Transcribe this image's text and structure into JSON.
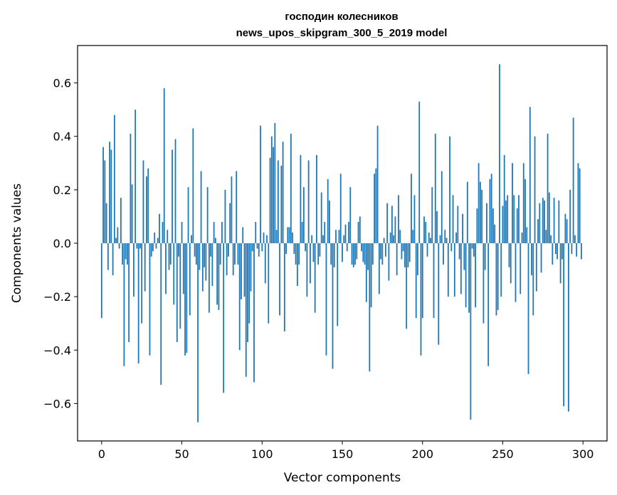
{
  "chart_data": {
    "type": "bar",
    "title_line1": "господин колесников",
    "title_line2": "news_upos_skipgram_300_5_2019 model",
    "xlabel": "Vector components",
    "ylabel": "Components values",
    "xlim": [
      -15,
      315
    ],
    "ylim": [
      -0.74,
      0.74
    ],
    "xticks": [
      0,
      50,
      100,
      150,
      200,
      250,
      300
    ],
    "xtick_labels": [
      "0",
      "50",
      "100",
      "150",
      "200",
      "250",
      "300"
    ],
    "yticks": [
      -0.6,
      -0.4,
      -0.2,
      0.0,
      0.2,
      0.4,
      0.6
    ],
    "ytick_labels": [
      "−0.6",
      "−0.4",
      "−0.2",
      "0.0",
      "0.2",
      "0.4",
      "0.6"
    ],
    "bar_color": "#1f77b4",
    "values": [
      -0.28,
      0.36,
      0.31,
      0.15,
      -0.1,
      0.38,
      0.35,
      -0.12,
      0.48,
      0.02,
      0.06,
      -0.02,
      0.17,
      -0.08,
      -0.46,
      -0.06,
      -0.08,
      -0.37,
      0.41,
      0.22,
      -0.2,
      0.5,
      -0.02,
      -0.45,
      -0.02,
      -0.3,
      0.31,
      -0.18,
      0.25,
      0.28,
      -0.42,
      -0.05,
      -0.03,
      0.04,
      -0.02,
      0.02,
      0.11,
      -0.53,
      0.08,
      0.58,
      -0.19,
      0.05,
      -0.1,
      -0.08,
      0.35,
      -0.23,
      0.39,
      -0.37,
      -0.05,
      -0.32,
      0.08,
      -0.19,
      -0.42,
      -0.41,
      0.21,
      -0.27,
      0.03,
      0.43,
      -0.05,
      -0.08,
      -0.67,
      -0.1,
      0.27,
      -0.18,
      -0.09,
      -0.14,
      0.21,
      -0.26,
      -0.05,
      -0.16,
      0.08,
      0.02,
      -0.23,
      -0.25,
      -0.08,
      0.08,
      -0.56,
      0.2,
      -0.12,
      -0.05,
      0.15,
      0.25,
      -0.12,
      -0.08,
      0.27,
      -0.08,
      -0.4,
      -0.21,
      0.06,
      -0.2,
      -0.5,
      -0.37,
      -0.3,
      -0.18,
      -0.03,
      -0.52,
      0.08,
      -0.02,
      -0.05,
      0.44,
      -0.03,
      0.04,
      -0.15,
      0.03,
      -0.3,
      0.32,
      0.4,
      0.36,
      0.45,
      0.05,
      0.31,
      -0.27,
      0.29,
      0.38,
      -0.33,
      -0.04,
      0.06,
      0.06,
      0.41,
      0.04,
      -0.04,
      -0.08,
      -0.16,
      -0.08,
      0.33,
      0.08,
      0.21,
      -0.03,
      -0.2,
      0.31,
      -0.15,
      0.03,
      -0.07,
      -0.26,
      0.33,
      -0.08,
      -0.05,
      0.19,
      0.03,
      0.08,
      -0.42,
      0.24,
      0.16,
      -0.08,
      -0.47,
      -0.09,
      0.05,
      -0.31,
      0.05,
      0.26,
      -0.07,
      0.03,
      0.07,
      -0.03,
      0.08,
      0.21,
      -0.08,
      -0.09,
      -0.08,
      -0.06,
      0.08,
      0.1,
      -0.03,
      -0.07,
      -0.08,
      -0.22,
      -0.1,
      -0.48,
      -0.24,
      -0.08,
      0.26,
      0.28,
      0.44,
      -0.19,
      -0.06,
      -0.08,
      0.02,
      -0.05,
      0.15,
      -0.14,
      0.04,
      0.14,
      0.03,
      0.1,
      -0.12,
      0.18,
      0.05,
      -0.06,
      -0.03,
      -0.09,
      -0.32,
      -0.09,
      -0.07,
      0.26,
      0.05,
      0.18,
      -0.28,
      -0.12,
      0.53,
      -0.42,
      -0.28,
      0.1,
      0.08,
      -0.05,
      0.04,
      0.02,
      0.21,
      -0.28,
      0.41,
      0.12,
      -0.38,
      0.03,
      0.27,
      -0.08,
      0.05,
      0.02,
      -0.2,
      0.4,
      -0.03,
      0.18,
      -0.2,
      0.04,
      0.14,
      -0.06,
      -0.19,
      0.11,
      -0.1,
      -0.24,
      0.23,
      -0.26,
      -0.66,
      -0.02,
      -0.05,
      -0.24,
      0.13,
      0.3,
      0.23,
      0.2,
      -0.3,
      -0.1,
      0.15,
      -0.46,
      0.24,
      0.26,
      0.13,
      0.07,
      -0.27,
      -0.25,
      0.67,
      -0.2,
      0.14,
      0.33,
      0.16,
      0.18,
      -0.09,
      -0.15,
      0.3,
      0.18,
      -0.22,
      0.13,
      0.18,
      -0.19,
      0.04,
      0.3,
      0.24,
      0.06,
      -0.49,
      0.51,
      -0.12,
      -0.27,
      0.4,
      -0.18,
      0.09,
      0.15,
      -0.11,
      0.17,
      0.16,
      0.05,
      0.41,
      0.19,
      0.03,
      -0.08,
      0.17,
      -0.04,
      -0.06,
      0.16,
      -0.15,
      -0.06,
      -0.61,
      0.11,
      0.09,
      -0.63,
      0.2,
      -0.04,
      0.47,
      0.03,
      -0.05,
      0.3,
      0.28,
      -0.06
    ]
  }
}
